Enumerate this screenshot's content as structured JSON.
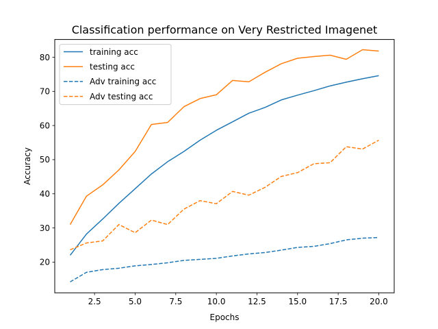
{
  "chart_data": {
    "type": "line",
    "title": "Classification performance on Very Restricted Imagenet",
    "xlabel": "Epochs",
    "ylabel": "Accuracy",
    "xlim": [
      0.05,
      20.95
    ],
    "ylim": [
      11.0,
      85.2
    ],
    "xticks": [
      2.5,
      5.0,
      7.5,
      10.0,
      12.5,
      15.0,
      17.5,
      20.0
    ],
    "xtick_labels": [
      "2.5",
      "5.0",
      "7.5",
      "10.0",
      "12.5",
      "15.0",
      "17.5",
      "20.0"
    ],
    "yticks": [
      20,
      30,
      40,
      50,
      60,
      70,
      80
    ],
    "ytick_labels": [
      "20",
      "30",
      "40",
      "50",
      "60",
      "70",
      "80"
    ],
    "grid": false,
    "legend_position": "upper-left",
    "x": [
      1,
      2,
      3,
      4,
      5,
      6,
      7,
      8,
      9,
      10,
      11,
      12,
      13,
      14,
      15,
      16,
      17,
      18,
      19,
      20
    ],
    "series": [
      {
        "name": "training acc",
        "color": "#1f77b4",
        "linestyle": "solid",
        "values": [
          22.0,
          28.2,
          32.6,
          37.2,
          41.5,
          45.8,
          49.4,
          52.4,
          55.7,
          58.6,
          61.1,
          63.6,
          65.3,
          67.5,
          68.9,
          70.2,
          71.6,
          72.7,
          73.7,
          74.6
        ]
      },
      {
        "name": "testing acc",
        "color": "#ff7f0e",
        "linestyle": "solid",
        "values": [
          31.0,
          39.3,
          42.6,
          47.0,
          52.4,
          60.3,
          60.9,
          65.5,
          67.9,
          69.0,
          73.2,
          72.8,
          75.6,
          78.1,
          79.7,
          80.2,
          80.6,
          79.4,
          82.2,
          81.8
        ]
      },
      {
        "name": "Adv training acc",
        "color": "#1f77b4",
        "linestyle": "dashed",
        "values": [
          14.2,
          17.0,
          17.8,
          18.2,
          18.9,
          19.3,
          19.8,
          20.5,
          20.8,
          21.1,
          21.8,
          22.4,
          22.8,
          23.5,
          24.3,
          24.6,
          25.4,
          26.5,
          27.0,
          27.2
        ]
      },
      {
        "name": "Adv testing acc",
        "color": "#ff7f0e",
        "linestyle": "dashed",
        "values": [
          23.6,
          25.6,
          26.2,
          31.0,
          28.6,
          32.3,
          31.0,
          35.5,
          38.0,
          37.1,
          40.7,
          39.6,
          41.9,
          45.1,
          46.2,
          48.8,
          49.1,
          53.8,
          53.1,
          55.7
        ]
      }
    ]
  }
}
